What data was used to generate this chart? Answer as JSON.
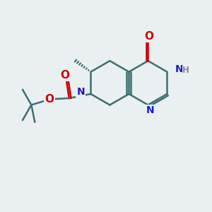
{
  "background_color": "#eaeff2",
  "bond_color": "#3a7070",
  "atom_colors": {
    "N": "#1a1acc",
    "O": "#cc0000",
    "H": "#888888",
    "C": "#3a7070"
  },
  "line_width": 1.8,
  "font_size_atoms": 10,
  "figsize": [
    3.0,
    3.0
  ],
  "dpi": 100
}
